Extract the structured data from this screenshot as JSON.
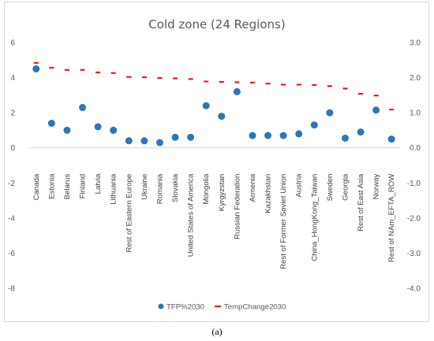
{
  "chart_data": {
    "type": "scatter",
    "title": "Cold zone (24 Regions)",
    "categories": [
      "Canada",
      "Estonia",
      "Belarus",
      "Finland",
      "Latvia",
      "Lithuania",
      "Rest of Eastern Europe",
      "Ukraine",
      "Romania",
      "Slovakia",
      "United States of America",
      "Mongolia",
      "Kyrgyzstan",
      "Russian Federation",
      "Armenia",
      "Kazakhstan",
      "Rest of Former Soviet Union",
      "Austria",
      "China_HongKong_Taiwan",
      "Sweden",
      "Georgia",
      "Rest of East Asia",
      "Norway",
      "Rest of NAm_EFTA_ROW"
    ],
    "series": [
      {
        "name": "TFP%2030",
        "axis": "left",
        "marker": "circle",
        "color": "#2e75b6",
        "values": [
          4.5,
          1.4,
          1.0,
          2.3,
          1.2,
          1.0,
          0.4,
          0.4,
          0.3,
          0.6,
          0.6,
          2.4,
          1.8,
          3.2,
          0.7,
          0.7,
          0.7,
          0.8,
          1.3,
          2.0,
          0.55,
          0.9,
          2.15,
          0.5
        ]
      },
      {
        "name": "TempChange2030",
        "axis": "right",
        "marker": "dash",
        "color": "#ff0000",
        "values": [
          2.42,
          2.28,
          2.22,
          2.22,
          2.15,
          2.13,
          2.02,
          2.01,
          1.99,
          1.98,
          1.96,
          1.89,
          1.88,
          1.87,
          1.86,
          1.83,
          1.8,
          1.8,
          1.79,
          1.76,
          1.69,
          1.54,
          1.49,
          1.09
        ]
      }
    ],
    "y_left": {
      "min": -8,
      "max": 6,
      "ticks": [
        "6",
        "4",
        "2",
        "0",
        "-2",
        "-4",
        "-6",
        "-8"
      ]
    },
    "y_right": {
      "min": -4,
      "max": 3,
      "ticks": [
        "3.0",
        "2.0",
        "1.0",
        "0.0",
        "-1.0",
        "-2.0",
        "-3.0",
        "-4.0"
      ]
    },
    "grid": false,
    "legend_position": "bottom"
  },
  "caption": "(a)"
}
